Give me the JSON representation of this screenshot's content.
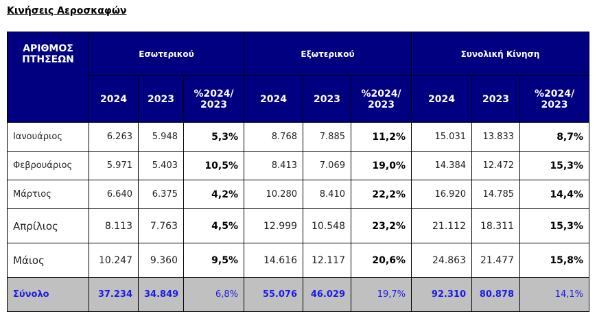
{
  "title": "Κινήσεις Αεροσκαφών",
  "header": {
    "row_label": "ΑΡΙΘΜΟΣ ΠΤΗΣΕΩΝ",
    "groups": [
      "Εσωτερικού",
      "Εξωτερικού",
      "Συνολική Κίνηση"
    ],
    "sub": [
      "2024",
      "2023",
      "%2024/ 2023"
    ]
  },
  "rows": [
    {
      "month": "Ιανουάριος",
      "vals": [
        "6.263",
        "5.948",
        "5,3%",
        "8.768",
        "7.885",
        "11,2%",
        "15.031",
        "13.833",
        "8,7%"
      ]
    },
    {
      "month": "Φεβρουάριος",
      "vals": [
        "5.971",
        "5.403",
        "10,5%",
        "8.413",
        "7.069",
        "19,0%",
        "14.384",
        "12.472",
        "15,3%"
      ]
    },
    {
      "month": "Μάρτιος",
      "vals": [
        "6.640",
        "6.375",
        "4,2%",
        "10.280",
        "8.410",
        "22,2%",
        "16.920",
        "14.785",
        "14,4%"
      ]
    },
    {
      "month": "Απρίλιος",
      "vals": [
        "8.113",
        "7.763",
        "4,5%",
        "12.999",
        "10.548",
        "23,2%",
        "21.112",
        "18.311",
        "15,3%"
      ]
    },
    {
      "month": "Μάιος",
      "vals": [
        "10.247",
        "9.360",
        "9,5%",
        "14.616",
        "12.117",
        "20,6%",
        "24.863",
        "21.477",
        "15,8%"
      ]
    }
  ],
  "total": {
    "label": "Σύνολο",
    "vals": [
      "37.234",
      "34.849",
      "6,8%",
      "55.076",
      "46.029",
      "19,7%",
      "92.310",
      "80.878",
      "14,1%"
    ]
  },
  "colors": {
    "header_bg": "#000080",
    "header_text": "#ffffff",
    "total_bg": "#c0c0c0",
    "total_text": "#1a1ae6"
  }
}
